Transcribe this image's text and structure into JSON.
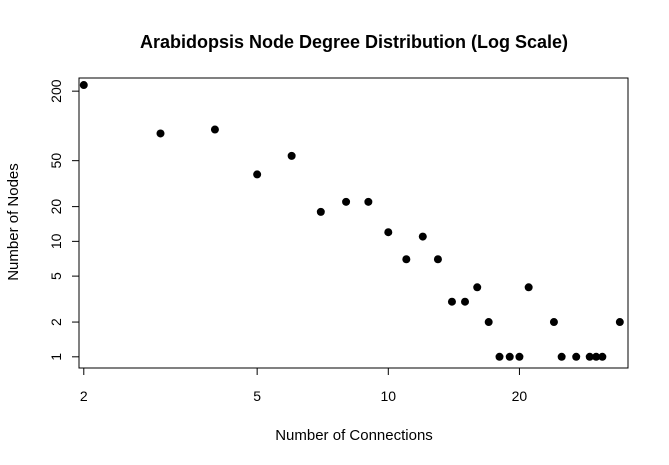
{
  "chart_data": {
    "type": "scatter",
    "title": "Arabidopsis Node Degree Distribution (Log Scale)",
    "xlabel": "Number of Connections",
    "ylabel": "Number of Nodes",
    "x_scale": "log",
    "y_scale": "log",
    "xlim": [
      1.95,
      35.5
    ],
    "ylim": [
      0.8,
      260
    ],
    "x_ticks": [
      2,
      5,
      10,
      20
    ],
    "y_ticks": [
      1,
      2,
      5,
      10,
      20,
      50,
      200
    ],
    "grid": false,
    "legend": "none",
    "marker_color": "#000000",
    "points": [
      {
        "x": 2,
        "y": 226
      },
      {
        "x": 3,
        "y": 86
      },
      {
        "x": 4,
        "y": 93
      },
      {
        "x": 5,
        "y": 38
      },
      {
        "x": 6,
        "y": 55
      },
      {
        "x": 7,
        "y": 18
      },
      {
        "x": 8,
        "y": 22
      },
      {
        "x": 9,
        "y": 22
      },
      {
        "x": 10,
        "y": 12
      },
      {
        "x": 11,
        "y": 7
      },
      {
        "x": 12,
        "y": 11
      },
      {
        "x": 13,
        "y": 7
      },
      {
        "x": 14,
        "y": 3
      },
      {
        "x": 15,
        "y": 3
      },
      {
        "x": 16,
        "y": 4
      },
      {
        "x": 17,
        "y": 2
      },
      {
        "x": 18,
        "y": 1
      },
      {
        "x": 19,
        "y": 1
      },
      {
        "x": 20,
        "y": 1
      },
      {
        "x": 21,
        "y": 4
      },
      {
        "x": 24,
        "y": 2
      },
      {
        "x": 25,
        "y": 1
      },
      {
        "x": 27,
        "y": 1
      },
      {
        "x": 29,
        "y": 1
      },
      {
        "x": 30,
        "y": 1
      },
      {
        "x": 31,
        "y": 1
      },
      {
        "x": 34,
        "y": 2
      }
    ]
  }
}
